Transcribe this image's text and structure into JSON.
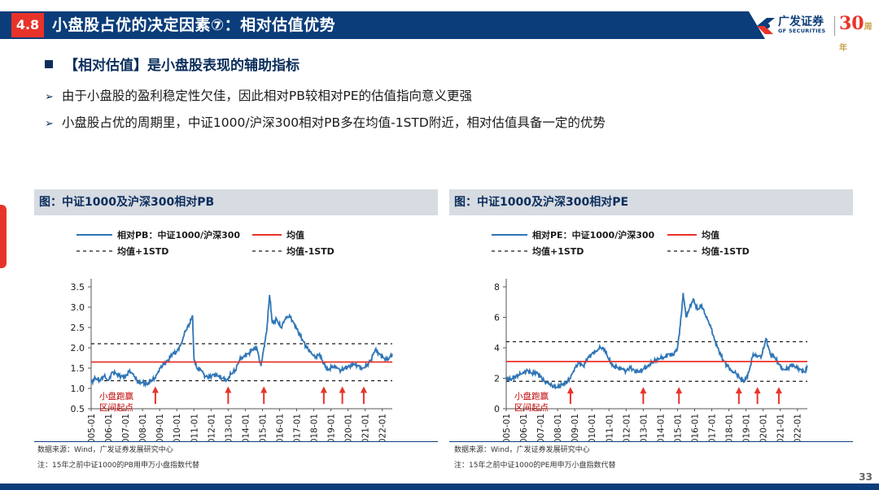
{
  "header": {
    "section": "4.8",
    "title": "小盘股占优的决定因素⑦：相对估值优势",
    "logo_cn": "广发证券",
    "logo_en": "GF SECURITIES",
    "logo_num": "30",
    "logo_num_suffix": "周年"
  },
  "bullets": {
    "main": "【相对估值】是小盘股表现的辅助指标",
    "sub1": "由于小盘股的盈利稳定性欠佳，因此相对PB较相对PE的估值指向意义更强",
    "sub2": "小盘股占优的周期里，中证1000/沪深300相对PB多在均值-1STD附近，相对估值具备一定的优势"
  },
  "footer": {
    "page": "33"
  },
  "chart_data": [
    {
      "type": "line",
      "title": "图：中证1000及沪深300相对PB",
      "legend": {
        "series": "相对PB：中证1000/沪深300",
        "mean": "均值",
        "plus_std": "均值+1STD",
        "minus_std": "均值-1STD"
      },
      "series_name": "相对PB：中证1000/沪深300",
      "x_start": "2005-01",
      "x_end": "2022-08",
      "x_ticks": [
        "2005-01",
        "2006-01",
        "2007-01",
        "2008-01",
        "2009-01",
        "2010-01",
        "2011-01",
        "2012-01",
        "2013-01",
        "2014-01",
        "2015-01",
        "2016-01",
        "2017-01",
        "2018-01",
        "2019-01",
        "2020-01",
        "2021-01",
        "2022-01"
      ],
      "ylim": [
        0.5,
        3.5
      ],
      "y_ticks": [
        "0.5",
        "1.0",
        "1.5",
        "2.0",
        "2.5",
        "3.0",
        "3.5"
      ],
      "mean": 1.65,
      "plus_std": 2.1,
      "minus_std": 1.19,
      "points": [
        [
          "2005-01",
          1.15
        ],
        [
          "2005-04",
          1.25
        ],
        [
          "2005-07",
          1.2
        ],
        [
          "2005-10",
          1.3
        ],
        [
          "2006-01",
          1.2
        ],
        [
          "2006-04",
          1.4
        ],
        [
          "2006-07",
          1.35
        ],
        [
          "2006-10",
          1.3
        ],
        [
          "2007-01",
          1.28
        ],
        [
          "2007-04",
          1.45
        ],
        [
          "2007-07",
          1.3
        ],
        [
          "2007-10",
          1.15
        ],
        [
          "2008-01",
          1.15
        ],
        [
          "2008-04",
          1.1
        ],
        [
          "2008-07",
          1.2
        ],
        [
          "2008-10",
          1.25
        ],
        [
          "2009-01",
          1.5
        ],
        [
          "2009-04",
          1.6
        ],
        [
          "2009-07",
          1.7
        ],
        [
          "2009-10",
          1.85
        ],
        [
          "2010-01",
          1.9
        ],
        [
          "2010-04",
          2.1
        ],
        [
          "2010-07",
          2.4
        ],
        [
          "2010-10",
          2.6
        ],
        [
          "2010-12",
          2.8
        ],
        [
          "2011-01",
          1.75
        ],
        [
          "2011-03",
          1.5
        ],
        [
          "2011-06",
          1.45
        ],
        [
          "2011-09",
          1.3
        ],
        [
          "2011-12",
          1.28
        ],
        [
          "2012-03",
          1.35
        ],
        [
          "2012-06",
          1.3
        ],
        [
          "2012-09",
          1.25
        ],
        [
          "2012-12",
          1.2
        ],
        [
          "2013-03",
          1.35
        ],
        [
          "2013-06",
          1.45
        ],
        [
          "2013-09",
          1.7
        ],
        [
          "2013-12",
          1.8
        ],
        [
          "2014-03",
          1.85
        ],
        [
          "2014-06",
          1.95
        ],
        [
          "2014-09",
          2.0
        ],
        [
          "2014-12",
          1.55
        ],
        [
          "2015-02",
          2.0
        ],
        [
          "2015-04",
          2.4
        ],
        [
          "2015-06",
          3.3
        ],
        [
          "2015-08",
          2.6
        ],
        [
          "2015-11",
          2.7
        ],
        [
          "2016-02",
          2.5
        ],
        [
          "2016-05",
          2.7
        ],
        [
          "2016-08",
          2.8
        ],
        [
          "2016-11",
          2.6
        ],
        [
          "2017-02",
          2.4
        ],
        [
          "2017-05",
          2.2
        ],
        [
          "2017-08",
          2.0
        ],
        [
          "2017-11",
          1.9
        ],
        [
          "2018-02",
          1.75
        ],
        [
          "2018-05",
          1.85
        ],
        [
          "2018-08",
          1.6
        ],
        [
          "2018-11",
          1.45
        ],
        [
          "2019-02",
          1.55
        ],
        [
          "2019-05",
          1.5
        ],
        [
          "2019-08",
          1.45
        ],
        [
          "2019-11",
          1.5
        ],
        [
          "2020-02",
          1.55
        ],
        [
          "2020-05",
          1.6
        ],
        [
          "2020-08",
          1.55
        ],
        [
          "2020-11",
          1.5
        ],
        [
          "2021-02",
          1.55
        ],
        [
          "2021-05",
          1.7
        ],
        [
          "2021-08",
          1.95
        ],
        [
          "2021-11",
          1.85
        ],
        [
          "2022-02",
          1.75
        ],
        [
          "2022-05",
          1.7
        ],
        [
          "2022-08",
          1.85
        ]
      ],
      "arrows_at": [
        "2008-10",
        "2013-01",
        "2015-02",
        "2018-08",
        "2019-09",
        "2020-12"
      ],
      "annotation": [
        "小盘跑赢",
        "区间起点"
      ]
    },
    {
      "type": "line",
      "title": "图：中证1000及沪深300相对PE",
      "legend": {
        "series": "相对PE：中证1000/沪深300",
        "mean": "均值",
        "plus_std": "均值+1STD",
        "minus_std": "均值-1STD"
      },
      "series_name": "相对PE：中证1000/沪深300",
      "x_start": "2005-01",
      "x_end": "2022-08",
      "x_ticks": [
        "2005-01",
        "2006-01",
        "2007-01",
        "2008-01",
        "2009-01",
        "2010-01",
        "2011-01",
        "2012-01",
        "2013-01",
        "2014-01",
        "2015-01",
        "2016-01",
        "2017-01",
        "2018-01",
        "2019-01",
        "2020-01",
        "2021-01",
        "2022-01"
      ],
      "ylim": [
        0,
        8
      ],
      "y_ticks": [
        "0",
        "2",
        "4",
        "6",
        "8"
      ],
      "mean": 3.1,
      "plus_std": 4.4,
      "minus_std": 1.8,
      "points": [
        [
          "2005-01",
          2.0
        ],
        [
          "2005-04",
          1.9
        ],
        [
          "2005-07",
          2.1
        ],
        [
          "2005-10",
          2.2
        ],
        [
          "2006-01",
          2.4
        ],
        [
          "2006-04",
          2.5
        ],
        [
          "2006-07",
          2.3
        ],
        [
          "2006-10",
          2.4
        ],
        [
          "2007-01",
          2.1
        ],
        [
          "2007-04",
          1.8
        ],
        [
          "2007-07",
          1.6
        ],
        [
          "2007-10",
          1.5
        ],
        [
          "2008-01",
          1.4
        ],
        [
          "2008-04",
          1.6
        ],
        [
          "2008-07",
          1.7
        ],
        [
          "2008-10",
          2.0
        ],
        [
          "2009-01",
          2.7
        ],
        [
          "2009-04",
          3.0
        ],
        [
          "2009-07",
          2.8
        ],
        [
          "2009-10",
          3.3
        ],
        [
          "2010-01",
          3.6
        ],
        [
          "2010-04",
          3.8
        ],
        [
          "2010-07",
          4.0
        ],
        [
          "2010-10",
          3.9
        ],
        [
          "2011-01",
          3.2
        ],
        [
          "2011-04",
          2.8
        ],
        [
          "2011-07",
          2.7
        ],
        [
          "2011-10",
          2.6
        ],
        [
          "2012-01",
          2.5
        ],
        [
          "2012-04",
          2.7
        ],
        [
          "2012-07",
          2.5
        ],
        [
          "2012-10",
          2.4
        ],
        [
          "2013-01",
          2.6
        ],
        [
          "2013-04",
          2.8
        ],
        [
          "2013-07",
          3.0
        ],
        [
          "2013-10",
          3.2
        ],
        [
          "2014-01",
          3.3
        ],
        [
          "2014-04",
          3.4
        ],
        [
          "2014-07",
          3.6
        ],
        [
          "2014-10",
          3.5
        ],
        [
          "2015-01",
          4.0
        ],
        [
          "2015-03",
          5.5
        ],
        [
          "2015-05",
          7.6
        ],
        [
          "2015-07",
          6.0
        ],
        [
          "2015-09",
          6.5
        ],
        [
          "2015-12",
          7.2
        ],
        [
          "2016-03",
          6.5
        ],
        [
          "2016-06",
          6.8
        ],
        [
          "2016-09",
          6.0
        ],
        [
          "2016-12",
          5.5
        ],
        [
          "2017-03",
          4.5
        ],
        [
          "2017-06",
          3.8
        ],
        [
          "2017-09",
          3.2
        ],
        [
          "2017-12",
          2.8
        ],
        [
          "2018-03",
          2.5
        ],
        [
          "2018-06",
          2.3
        ],
        [
          "2018-09",
          2.0
        ],
        [
          "2018-12",
          1.8
        ],
        [
          "2019-03",
          2.4
        ],
        [
          "2019-06",
          3.6
        ],
        [
          "2019-09",
          3.4
        ],
        [
          "2019-12",
          3.5
        ],
        [
          "2020-03",
          4.6
        ],
        [
          "2020-06",
          3.6
        ],
        [
          "2020-09",
          3.4
        ],
        [
          "2020-12",
          2.9
        ],
        [
          "2021-03",
          2.6
        ],
        [
          "2021-06",
          2.6
        ],
        [
          "2021-09",
          2.9
        ],
        [
          "2021-12",
          2.7
        ],
        [
          "2022-03",
          2.6
        ],
        [
          "2022-06",
          2.4
        ],
        [
          "2022-08",
          2.7
        ]
      ],
      "arrows_at": [
        "2008-10",
        "2013-01",
        "2015-02",
        "2018-08",
        "2019-09",
        "2020-12"
      ],
      "annotation": [
        "小盘跑赢",
        "区间起点"
      ]
    }
  ],
  "sources": {
    "left_src": "数据来源：Wind，广发证券发展研究中心",
    "left_note": "注：15年之前中证1000的PB用申万小盘指数代替",
    "right_src": "数据来源：Wind，广发证券发展研究中心",
    "right_note": "注：15年之前中证1000的PE用申万小盘指数代替"
  },
  "colors": {
    "navy": "#0b3d7a",
    "red": "#e8332a",
    "series_blue": "#2e75b6",
    "dashed": "#1a1a1a"
  }
}
